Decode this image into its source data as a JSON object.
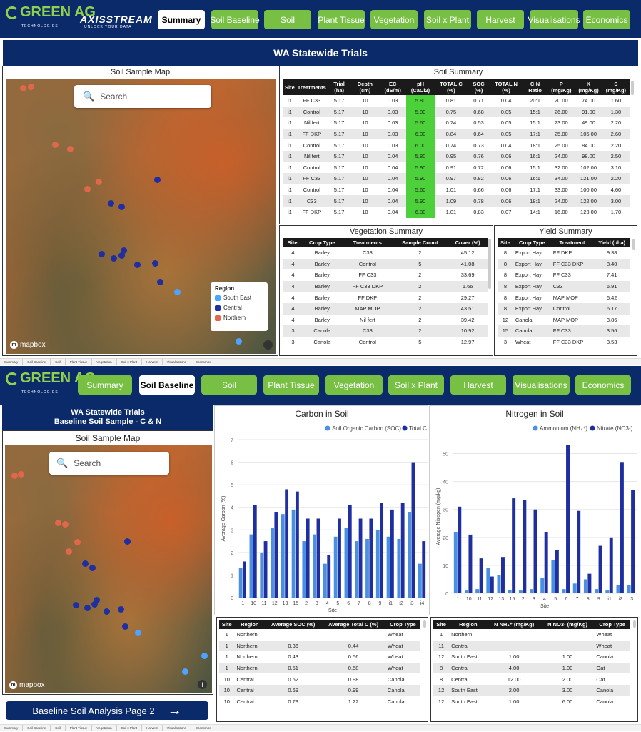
{
  "top": {
    "logo": "GREEN AG",
    "logo_sub": "TECHNOLOGIES",
    "axis": "AXISSTREAM",
    "axis_sub": "UNLOCK YOUR DATA",
    "nav": [
      "Summary",
      "Soil Baseline",
      "Soil",
      "Plant Tissue",
      "Vegetation",
      "Soil x Plant",
      "Harvest",
      "Visualisations",
      "Economics"
    ],
    "active": "Summary",
    "title": "WA Statewide Trials",
    "map_title": "Soil Sample Map",
    "search_placeholder": "Search",
    "legend": {
      "title": "Region",
      "items": [
        {
          "label": "South East",
          "color": "#4da3ff"
        },
        {
          "label": "Central",
          "color": "#1f2fa0"
        },
        {
          "label": "Northern",
          "color": "#e0684a"
        }
      ]
    },
    "mapbox": "mapbox",
    "soil_summary": {
      "title": "Soil Summary",
      "headers": [
        "Site",
        "Treatments",
        "Trial (ha)",
        "Depth (cm)",
        "EC (dS/m)",
        "pH (CaCl2)",
        "TOTAL C (%)",
        "SOC (%)",
        "TOTAL N (%)",
        "C:N Ratio",
        "P (mg/Kg)",
        "K (mg/Kg)",
        "S (mg/Kg)"
      ],
      "rows": [
        [
          "i1",
          "FF C33",
          "5.17",
          "10",
          "0.03",
          "5.80",
          "0.81",
          "0.71",
          "0.04",
          "20:1",
          "20.00",
          "74.00",
          "1.60"
        ],
        [
          "i1",
          "Control",
          "5.17",
          "10",
          "0.03",
          "5.80",
          "0.75",
          "0.68",
          "0.05",
          "15:1",
          "26.00",
          "91.00",
          "1.30"
        ],
        [
          "i1",
          "Nil fert",
          "5.17",
          "10",
          "0.03",
          "5.60",
          "0.74",
          "0.53",
          "0.05",
          "15:1",
          "23.00",
          "49.00",
          "2.20"
        ],
        [
          "i1",
          "FF DKP",
          "5.17",
          "10",
          "0.03",
          "6.00",
          "0.84",
          "0.64",
          "0.05",
          "17:1",
          "25.00",
          "105.00",
          "2.60"
        ],
        [
          "i1",
          "Control",
          "5.17",
          "10",
          "0.03",
          "6.00",
          "0.74",
          "0.73",
          "0.04",
          "18:1",
          "25.00",
          "84.00",
          "2.20"
        ],
        [
          "i1",
          "Nil fert",
          "5.17",
          "10",
          "0.04",
          "5.80",
          "0.95",
          "0.76",
          "0.06",
          "16:1",
          "24.00",
          "98.00",
          "2.50"
        ],
        [
          "i1",
          "Control",
          "5.17",
          "10",
          "0.04",
          "5.90",
          "0.91",
          "0.72",
          "0.06",
          "15:1",
          "32.00",
          "102.00",
          "3.10"
        ],
        [
          "i1",
          "FF C33",
          "5.17",
          "10",
          "0.04",
          "5.90",
          "0.97",
          "0.82",
          "0.06",
          "16:1",
          "34.00",
          "121.00",
          "2.20"
        ],
        [
          "i1",
          "Control",
          "5.17",
          "10",
          "0.04",
          "5.60",
          "1.01",
          "0.66",
          "0.06",
          "17:1",
          "33.00",
          "100.00",
          "4.60"
        ],
        [
          "i1",
          "C33",
          "5.17",
          "10",
          "0.04",
          "5.90",
          "1.09",
          "0.78",
          "0.06",
          "18:1",
          "24.00",
          "122.00",
          "3.00"
        ],
        [
          "i1",
          "FF DKP",
          "5.17",
          "10",
          "0.04",
          "6.30",
          "1.01",
          "0.83",
          "0.07",
          "14:1",
          "16.00",
          "123.00",
          "1.70"
        ]
      ]
    },
    "veg_summary": {
      "title": "Vegetation Summary",
      "headers": [
        "Site",
        "Crop Type",
        "Treatments",
        "Sample Count",
        "Cover (%)"
      ],
      "rows": [
        [
          "i4",
          "Barley",
          "C33",
          "2",
          "45.12"
        ],
        [
          "i4",
          "Barley",
          "Control",
          "5",
          "41.08"
        ],
        [
          "i4",
          "Barley",
          "FF C33",
          "2",
          "33.69"
        ],
        [
          "i4",
          "Barley",
          "FF C33 DKP",
          "2",
          "1.66"
        ],
        [
          "i4",
          "Barley",
          "FF DKP",
          "2",
          "29.27"
        ],
        [
          "i4",
          "Barley",
          "MAP MOP",
          "2",
          "43.51"
        ],
        [
          "i4",
          "Barley",
          "Nil fert",
          "2",
          "39.42"
        ],
        [
          "i3",
          "Canola",
          "C33",
          "2",
          "10.92"
        ],
        [
          "i3",
          "Canola",
          "Control",
          "5",
          "12.97"
        ]
      ]
    },
    "yield_summary": {
      "title": "Yield Summary",
      "headers": [
        "Site",
        "Crop Type",
        "Treatment",
        "Yield (t/ha)"
      ],
      "rows": [
        [
          "8",
          "Export Hay",
          "FF DKP",
          "9.38"
        ],
        [
          "8",
          "Export Hay",
          "FF C33 DKP",
          "8.40"
        ],
        [
          "8",
          "Export Hay",
          "FF C33",
          "7.41"
        ],
        [
          "8",
          "Export Hay",
          "C33",
          "6.91"
        ],
        [
          "8",
          "Export Hay",
          "MAP MOP",
          "6.42"
        ],
        [
          "8",
          "Export Hay",
          "Control",
          "6.17"
        ],
        [
          "12",
          "Canola",
          "MAP MOP",
          "3.86"
        ],
        [
          "15",
          "Canola",
          "FF C33",
          "3.56"
        ],
        [
          "3",
          "Wheat",
          "FF C33 DKP",
          "3.53"
        ]
      ]
    }
  },
  "footer_tabs": [
    "Summary",
    "Soil Baseline",
    "Soil",
    "Plant Tissue",
    "Vegetation",
    "Soil x Plant",
    "Harvest",
    "Visualisations",
    "Economics"
  ],
  "bottom": {
    "nav": [
      "Summary",
      "Soil Baseline",
      "Soil",
      "Plant Tissue",
      "Vegetation",
      "Soil x Plant",
      "Harvest",
      "Visualisations",
      "Economics"
    ],
    "active": "Soil Baseline",
    "title_line1": "WA Statewide Trials",
    "title_line2": "Baseline Soil Sample - C & N",
    "map_title": "Soil Sample Map",
    "search_placeholder": "Search",
    "mapbox": "mapbox",
    "page_button": "Baseline Soil Analysis Page 2",
    "soc_table": {
      "headers": [
        "Site",
        "Region",
        "Average SOC (%)",
        "Average Total C (%)",
        "Crop Type"
      ],
      "rows": [
        [
          "1",
          "Northern",
          "",
          "",
          "Wheat"
        ],
        [
          "1",
          "Northern",
          "0.36",
          "0.44",
          "Wheat"
        ],
        [
          "1",
          "Northern",
          "0.43",
          "0.56",
          "Wheat"
        ],
        [
          "1",
          "Northern",
          "0.51",
          "0.58",
          "Wheat"
        ],
        [
          "10",
          "Central",
          "0.62",
          "0.98",
          "Canola"
        ],
        [
          "10",
          "Central",
          "0.69",
          "0.99",
          "Canola"
        ],
        [
          "10",
          "Central",
          "0.73",
          "1.22",
          "Canola"
        ]
      ]
    },
    "n_table": {
      "headers": [
        "Site",
        "Region",
        "N NH₄⁺ (mg/Kg)",
        "N NO3- (mg/Kg)",
        "Crop Type"
      ],
      "rows": [
        [
          "1",
          "Northern",
          "",
          "",
          "Wheat"
        ],
        [
          "11",
          "Central",
          "",
          "",
          "Wheat"
        ],
        [
          "12",
          "South East",
          "1.00",
          "1.00",
          "Canola"
        ],
        [
          "8",
          "Central",
          "4.00",
          "1.00",
          "Oat"
        ],
        [
          "8",
          "Central",
          "12.00",
          "2.00",
          "Oat"
        ],
        [
          "12",
          "South East",
          "2.00",
          "3.00",
          "Canola"
        ],
        [
          "12",
          "South East",
          "1.00",
          "6.00",
          "Canola"
        ]
      ]
    }
  },
  "chart_data": [
    {
      "type": "bar",
      "title": "Carbon in Soil",
      "xlabel": "Site",
      "ylabel": "Average Carbon (%)",
      "ylim": [
        0,
        7
      ],
      "yticks": [
        0,
        1,
        2,
        3,
        4,
        5,
        6,
        7
      ],
      "legend_position": "top-right",
      "categories": [
        "1",
        "10",
        "11",
        "12",
        "13",
        "15",
        "2",
        "3",
        "4",
        "5",
        "6",
        "7",
        "8",
        "9",
        "i1",
        "i2",
        "i3",
        "i4"
      ],
      "series": [
        {
          "name": "Soil Organic Carbon (SOC)",
          "color": "#4a90e2",
          "values": [
            1.3,
            2.8,
            2.0,
            3.1,
            3.7,
            3.9,
            2.5,
            2.8,
            1.5,
            2.7,
            3.1,
            2.5,
            2.6,
            3.0,
            2.7,
            2.6,
            3.8,
            1.5
          ]
        },
        {
          "name": "Total C",
          "color": "#1f2fa0",
          "values": [
            1.6,
            4.1,
            2.5,
            3.8,
            4.8,
            4.7,
            3.5,
            3.5,
            1.9,
            3.5,
            4.1,
            3.5,
            3.5,
            4.2,
            3.9,
            4.2,
            6.0,
            2.5
          ]
        }
      ]
    },
    {
      "type": "bar",
      "title": "Nitrogen in Soil",
      "xlabel": "Site",
      "ylabel": "Average Nitrogen (mg/kg)",
      "ylim": [
        0,
        55
      ],
      "yticks": [
        0,
        10,
        20,
        30,
        40,
        50
      ],
      "legend_position": "top-right",
      "categories": [
        "1",
        "10",
        "11",
        "12",
        "13",
        "15",
        "2",
        "3",
        "4",
        "5",
        "6",
        "7",
        "8",
        "9",
        "i1",
        "i2",
        "i3"
      ],
      "series": [
        {
          "name": "Ammonium (NH₄⁺)",
          "color": "#4a90e2",
          "values": [
            22,
            1,
            1.5,
            9,
            6.5,
            1.2,
            1,
            1.5,
            5.5,
            12,
            1.5,
            3.5,
            5,
            1.5,
            1,
            3,
            3
          ]
        },
        {
          "name": "Nitrate (NO3-)",
          "color": "#1f2fa0",
          "values": [
            31,
            21,
            12.5,
            6,
            13,
            34,
            33.5,
            30,
            22,
            15.5,
            53,
            29.5,
            7,
            17,
            20,
            47,
            37
          ]
        }
      ]
    }
  ]
}
